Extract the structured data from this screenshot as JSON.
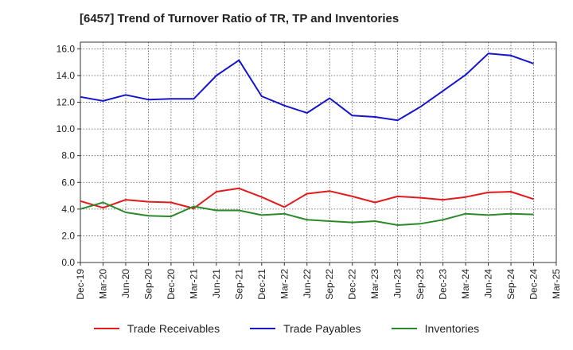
{
  "chart_data": {
    "type": "line",
    "title": "[6457]  Trend of Turnover Ratio of TR, TP and Inventories",
    "xlabel": "",
    "ylabel": "",
    "ylim": [
      0,
      16.5
    ],
    "yticks": [
      "0.0",
      "2.0",
      "4.0",
      "6.0",
      "8.0",
      "10.0",
      "12.0",
      "14.0",
      "16.0"
    ],
    "ytick_values": [
      0,
      2,
      4,
      6,
      8,
      10,
      12,
      14,
      16
    ],
    "x": [
      "Dec-19",
      "Mar-20",
      "Jun-20",
      "Sep-20",
      "Dec-20",
      "Mar-21",
      "Jun-21",
      "Sep-21",
      "Dec-21",
      "Mar-22",
      "Jun-22",
      "Sep-22",
      "Dec-22",
      "Mar-23",
      "Jun-23",
      "Sep-23",
      "Dec-23",
      "Mar-24",
      "Jun-24",
      "Sep-24",
      "Dec-24",
      "Mar-25"
    ],
    "grid": true,
    "legend_position": "bottom",
    "series": [
      {
        "name": "Trade Receivables",
        "color": "#e31a1c",
        "values": [
          4.6,
          4.1,
          4.7,
          4.55,
          4.5,
          4.05,
          5.3,
          5.55,
          4.9,
          4.15,
          5.15,
          5.35,
          4.95,
          4.5,
          4.95,
          4.85,
          4.7,
          4.9,
          5.25,
          5.3,
          4.75,
          null
        ]
      },
      {
        "name": "Trade Payables",
        "color": "#1515cc",
        "values": [
          12.4,
          12.1,
          12.55,
          12.2,
          12.25,
          12.25,
          14.0,
          15.15,
          12.45,
          11.75,
          11.2,
          12.3,
          11.0,
          10.9,
          10.65,
          11.65,
          12.85,
          14.05,
          15.65,
          15.5,
          14.9,
          null
        ]
      },
      {
        "name": "Inventories",
        "color": "#2a8a2a",
        "values": [
          4.0,
          4.5,
          3.75,
          3.5,
          3.45,
          4.2,
          3.9,
          3.9,
          3.55,
          3.65,
          3.2,
          3.1,
          3.0,
          3.1,
          2.8,
          2.9,
          3.2,
          3.65,
          3.55,
          3.65,
          3.6,
          null
        ]
      }
    ]
  }
}
